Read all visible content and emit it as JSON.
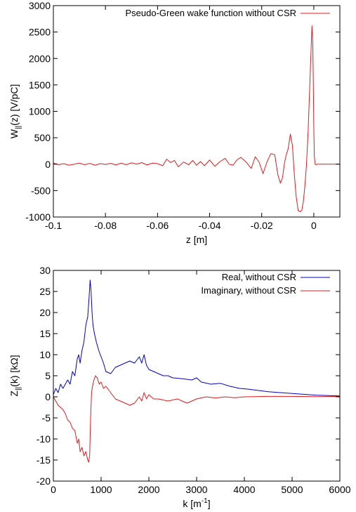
{
  "chart_data": [
    {
      "type": "line",
      "xlabel": "z [m]",
      "ylabel": "W",
      "ylabel_sub": "||",
      "ylabel_rest": "(z) [V/pC]",
      "xlim": [
        -0.1,
        0.01
      ],
      "ylim": [
        -1000,
        3000
      ],
      "xticks": [
        {
          "value": -0.1,
          "label": "-0.1"
        },
        {
          "value": -0.08,
          "label": "-0.08"
        },
        {
          "value": -0.06,
          "label": "-0.06"
        },
        {
          "value": -0.04,
          "label": "-0.04"
        },
        {
          "value": -0.02,
          "label": "-0.02"
        },
        {
          "value": 0,
          "label": "0"
        }
      ],
      "yticks": [
        {
          "value": -1000,
          "label": "-1000"
        },
        {
          "value": -500,
          "label": "-500"
        },
        {
          "value": 0,
          "label": "0"
        },
        {
          "value": 500,
          "label": "500"
        },
        {
          "value": 1000,
          "label": "1000"
        },
        {
          "value": 1500,
          "label": "1500"
        },
        {
          "value": 2000,
          "label": "2000"
        },
        {
          "value": 2500,
          "label": "2500"
        },
        {
          "value": 3000,
          "label": "3000"
        }
      ],
      "legend_position": "top-right",
      "grid": false,
      "series": [
        {
          "name": "Pseudo-Green wake function without CSR",
          "color": "#e41a1c",
          "x": [
            -0.1,
            -0.098,
            -0.096,
            -0.094,
            -0.092,
            -0.09,
            -0.088,
            -0.086,
            -0.084,
            -0.082,
            -0.08,
            -0.078,
            -0.076,
            -0.074,
            -0.072,
            -0.07,
            -0.068,
            -0.066,
            -0.064,
            -0.062,
            -0.06,
            -0.058,
            -0.0565,
            -0.055,
            -0.0535,
            -0.052,
            -0.05,
            -0.048,
            -0.0465,
            -0.045,
            -0.0435,
            -0.042,
            -0.04,
            -0.038,
            -0.036,
            -0.034,
            -0.0325,
            -0.031,
            -0.0295,
            -0.028,
            -0.026,
            -0.024,
            -0.0225,
            -0.021,
            -0.0195,
            -0.018,
            -0.0165,
            -0.015,
            -0.0138,
            -0.0128,
            -0.012,
            -0.0112,
            -0.0105,
            -0.0098,
            -0.009,
            -0.0082,
            -0.0075,
            -0.0068,
            -0.006,
            -0.0052,
            -0.0046,
            -0.004,
            -0.0034,
            -0.0028,
            -0.0022,
            -0.0016,
            -0.0011,
            -0.0007,
            -0.0004,
            -0.0002,
            0.0,
            0.0002,
            0.0005,
            0.0009,
            0.0014,
            0.002,
            0.003,
            0.005,
            0.007,
            0.01
          ],
          "y": [
            20,
            -10,
            10,
            -20,
            0,
            20,
            -10,
            15,
            -20,
            10,
            -5,
            15,
            -15,
            20,
            -10,
            25,
            0,
            30,
            -15,
            20,
            10,
            -30,
            95,
            30,
            70,
            -50,
            40,
            -10,
            70,
            -20,
            50,
            -30,
            80,
            -40,
            50,
            110,
            0,
            -20,
            80,
            130,
            40,
            -80,
            140,
            40,
            -180,
            40,
            200,
            180,
            -200,
            -360,
            -250,
            40,
            190,
            300,
            570,
            350,
            -180,
            -600,
            -880,
            -900,
            -870,
            -700,
            -400,
            0,
            600,
            1400,
            2100,
            2620,
            2300,
            1600,
            700,
            150,
            0,
            -10,
            0,
            0,
            0,
            0,
            0,
            0
          ]
        }
      ]
    },
    {
      "type": "line",
      "xlabel": "k [m",
      "xlabel_sup": "-1",
      "xlabel_rest": "]",
      "ylabel": "Z",
      "ylabel_sub": "||",
      "ylabel_rest": "(k) [kΩ]",
      "xlim": [
        0,
        6000
      ],
      "ylim": [
        -20,
        30
      ],
      "xticks": [
        {
          "value": 0,
          "label": "0"
        },
        {
          "value": 1000,
          "label": "1000"
        },
        {
          "value": 2000,
          "label": "2000"
        },
        {
          "value": 3000,
          "label": "3000"
        },
        {
          "value": 4000,
          "label": "4000"
        },
        {
          "value": 5000,
          "label": "5000"
        },
        {
          "value": 6000,
          "label": "6000"
        }
      ],
      "yticks": [
        {
          "value": -20,
          "label": "-20"
        },
        {
          "value": -15,
          "label": "-15"
        },
        {
          "value": -10,
          "label": "-10"
        },
        {
          "value": -5,
          "label": "-5"
        },
        {
          "value": 0,
          "label": "0"
        },
        {
          "value": 5,
          "label": "5"
        },
        {
          "value": 10,
          "label": "10"
        },
        {
          "value": 15,
          "label": "15"
        },
        {
          "value": 20,
          "label": "20"
        },
        {
          "value": 25,
          "label": "25"
        },
        {
          "value": 30,
          "label": "30"
        }
      ],
      "legend_position": "top-right",
      "grid": false,
      "series": [
        {
          "name": "Real, without CSR",
          "color": "#0000cc",
          "x": [
            0,
            50,
            100,
            150,
            200,
            250,
            300,
            350,
            400,
            450,
            500,
            530,
            560,
            600,
            640,
            680,
            720,
            750,
            770,
            790,
            810,
            830,
            860,
            900,
            950,
            1000,
            1050,
            1100,
            1200,
            1300,
            1400,
            1500,
            1600,
            1700,
            1800,
            1850,
            1900,
            1950,
            2000,
            2100,
            2200,
            2300,
            2400,
            2500,
            2700,
            2900,
            3000,
            3100,
            3300,
            3500,
            3700,
            3900,
            4100,
            4500,
            5000,
            5500,
            6000
          ],
          "y": [
            0.5,
            2,
            1,
            3,
            2,
            3,
            4,
            3,
            6,
            5,
            9,
            10,
            8,
            11,
            13,
            17,
            19,
            24,
            27.7,
            25,
            20,
            17,
            15,
            13,
            11,
            9.5,
            8,
            6,
            5.5,
            7,
            7.5,
            8,
            8.5,
            8,
            9.5,
            8,
            10,
            7.5,
            6.5,
            6,
            5.5,
            5,
            5,
            4.5,
            4.3,
            4,
            4.5,
            3.5,
            3,
            3.2,
            2.5,
            2,
            1.8,
            1.2,
            0.8,
            0.4,
            0.2
          ]
        },
        {
          "name": "Imaginary, without CSR",
          "color": "#e41a1c",
          "x": [
            0,
            50,
            100,
            150,
            200,
            250,
            300,
            350,
            400,
            450,
            500,
            530,
            560,
            600,
            640,
            680,
            720,
            740,
            760,
            780,
            800,
            820,
            850,
            880,
            920,
            960,
            1000,
            1050,
            1100,
            1200,
            1300,
            1400,
            1500,
            1600,
            1700,
            1800,
            1850,
            1900,
            1950,
            2000,
            2100,
            2200,
            2400,
            2600,
            2800,
            2900,
            3000,
            3200,
            3400,
            3600,
            3800,
            4000,
            4500,
            5000,
            5500,
            6000
          ],
          "y": [
            0,
            -1,
            -2,
            -2.5,
            -3,
            -4,
            -5.5,
            -6,
            -7.5,
            -8,
            -11,
            -10,
            -13,
            -12,
            -14,
            -13,
            -15,
            -15.5,
            -14,
            -5,
            1,
            2.5,
            4,
            5,
            4.5,
            3,
            3.5,
            2,
            2.5,
            1,
            -0.5,
            -1,
            -1.5,
            -2,
            -1.5,
            0,
            -1,
            1,
            -0.5,
            0.5,
            -0.5,
            -0.5,
            -1,
            -0.5,
            -1.5,
            -1,
            -0.5,
            0,
            -0.3,
            0,
            -0.2,
            0,
            0.1,
            0.1,
            0.05,
            0.1
          ]
        }
      ]
    }
  ]
}
